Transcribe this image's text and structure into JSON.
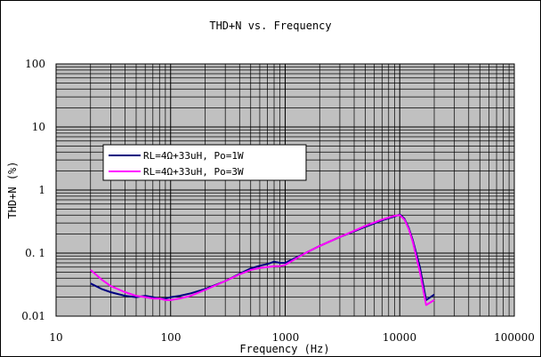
{
  "chart_data": {
    "type": "line",
    "title": "THD+N vs. Frequency",
    "xlabel": "Frequency (Hz)",
    "ylabel": "THD+N (%)",
    "x_scale": "log",
    "y_scale": "log",
    "xlim": [
      10,
      100000
    ],
    "ylim": [
      0.01,
      100
    ],
    "x_ticks": [
      "10",
      "100",
      "1000",
      "10000",
      "100000"
    ],
    "y_ticks": [
      "100",
      "10",
      "1",
      "0. 1",
      "0.01"
    ],
    "grid": true,
    "legend_position": "center-left",
    "colors": {
      "plot_bg": "#c0c0c0",
      "grid": "#000000"
    },
    "series": [
      {
        "name": "RL=4Ω+33uH, Po=1W",
        "color": "#000080",
        "x": [
          20,
          25,
          30,
          40,
          50,
          60,
          70,
          80,
          90,
          100,
          120,
          150,
          200,
          300,
          400,
          500,
          600,
          700,
          800,
          900,
          1000,
          1500,
          2000,
          3000,
          5000,
          7000,
          9000,
          10000,
          11000,
          12000,
          13000,
          15000,
          17000,
          20000
        ],
        "y": [
          0.033,
          0.027,
          0.024,
          0.021,
          0.02,
          0.021,
          0.02,
          0.019,
          0.019,
          0.02,
          0.021,
          0.023,
          0.027,
          0.036,
          0.047,
          0.057,
          0.063,
          0.067,
          0.073,
          0.07,
          0.07,
          0.1,
          0.13,
          0.18,
          0.26,
          0.33,
          0.38,
          0.41,
          0.35,
          0.25,
          0.16,
          0.06,
          0.018,
          0.022
        ]
      },
      {
        "name": "RL=4Ω+33uH, Po=3W",
        "color": "#ff00ff",
        "x": [
          20,
          25,
          30,
          40,
          50,
          60,
          70,
          80,
          90,
          100,
          120,
          150,
          200,
          300,
          400,
          500,
          600,
          700,
          800,
          900,
          1000,
          1500,
          2000,
          3000,
          5000,
          7000,
          9000,
          10000,
          11000,
          12000,
          13000,
          15000,
          17000,
          20000
        ],
        "y": [
          0.054,
          0.038,
          0.03,
          0.024,
          0.021,
          0.02,
          0.019,
          0.019,
          0.018,
          0.018,
          0.019,
          0.021,
          0.026,
          0.036,
          0.046,
          0.054,
          0.058,
          0.06,
          0.062,
          0.062,
          0.065,
          0.1,
          0.13,
          0.18,
          0.27,
          0.34,
          0.39,
          0.4,
          0.34,
          0.24,
          0.15,
          0.05,
          0.015,
          0.018
        ]
      }
    ]
  }
}
